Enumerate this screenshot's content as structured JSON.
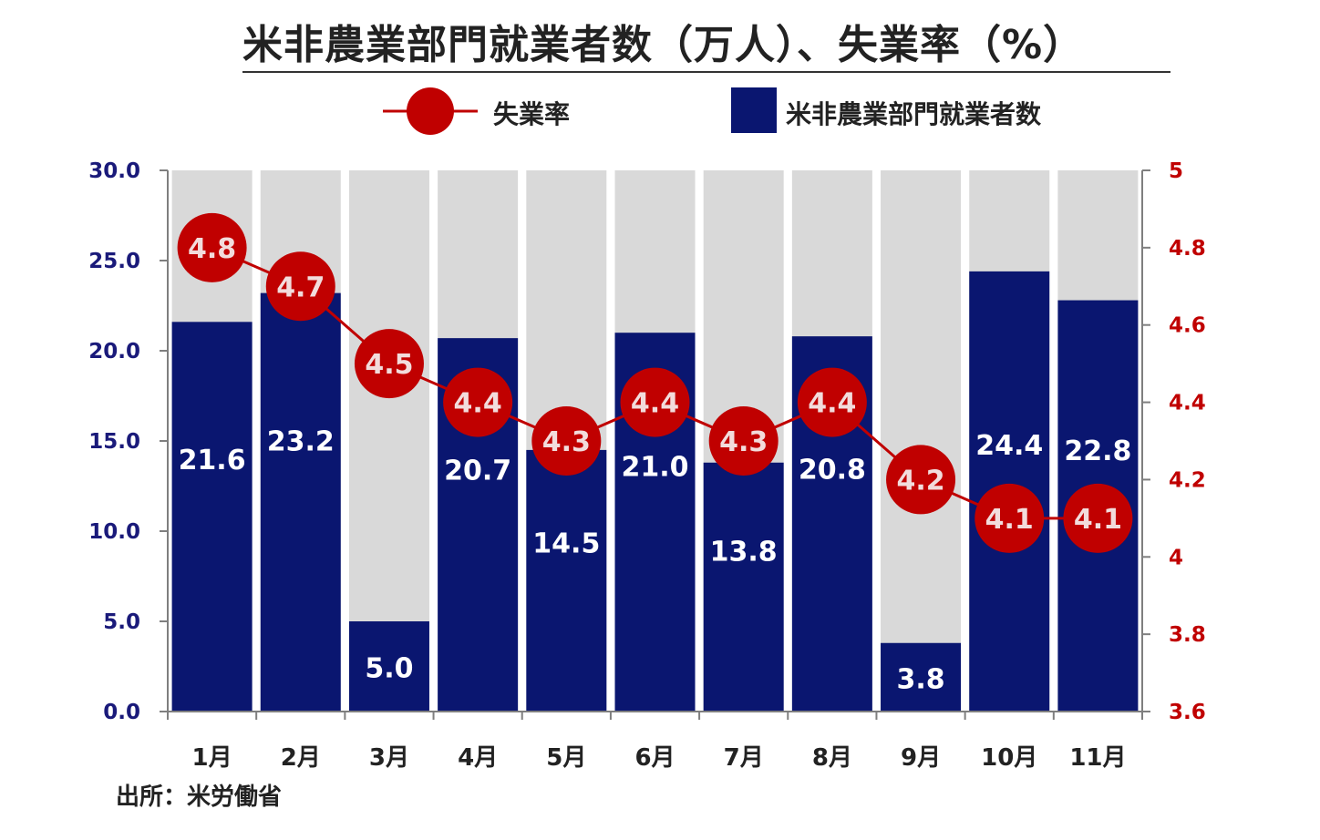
{
  "title": "米非農業部門就業者数（万人）、失業率（%）",
  "source": "出所：米労働省",
  "colors": {
    "bar": "#0a1670",
    "bar_background": "#d9d9d9",
    "line": "#c00000",
    "left_axis_text": "#1a1a7a",
    "right_axis_text": "#c00000",
    "value_label": "#ffffff"
  },
  "chart_data": {
    "type": "bar",
    "categories": [
      "1月",
      "2月",
      "3月",
      "4月",
      "5月",
      "6月",
      "7月",
      "8月",
      "9月",
      "10月",
      "11月"
    ],
    "series": [
      {
        "name": "米非農業部門就業者数",
        "type": "bar",
        "axis": "left",
        "values": [
          21.6,
          23.2,
          5.0,
          20.7,
          14.5,
          21.0,
          13.8,
          20.8,
          3.8,
          24.4,
          22.8
        ],
        "labels": [
          "21.6",
          "23.2",
          "5.0",
          "20.7",
          "14.5",
          "21.0",
          "13.8",
          "20.8",
          "3.8",
          "24.4",
          "22.8"
        ]
      },
      {
        "name": "失業率",
        "type": "line",
        "axis": "right",
        "values": [
          4.8,
          4.7,
          4.5,
          4.4,
          4.3,
          4.4,
          4.3,
          4.4,
          4.2,
          4.1,
          4.1
        ],
        "labels": [
          "4.8",
          "4.7",
          "4.5",
          "4.4",
          "4.3",
          "4.4",
          "4.3",
          "4.4",
          "4.2",
          "4.1",
          "4.1"
        ]
      }
    ],
    "left_axis": {
      "range": [
        0,
        30
      ],
      "ticks": [
        "0.0",
        "5.0",
        "10.0",
        "15.0",
        "20.0",
        "25.0",
        "30.0"
      ]
    },
    "right_axis": {
      "range": [
        3.6,
        5.0
      ],
      "ticks": [
        "3.6",
        "3.8",
        "4",
        "4.2",
        "4.4",
        "4.6",
        "4.8",
        "5"
      ]
    },
    "legend": {
      "position": "top",
      "entries": [
        "失業率",
        "米非農業部門就業者数"
      ]
    },
    "grid": false
  }
}
